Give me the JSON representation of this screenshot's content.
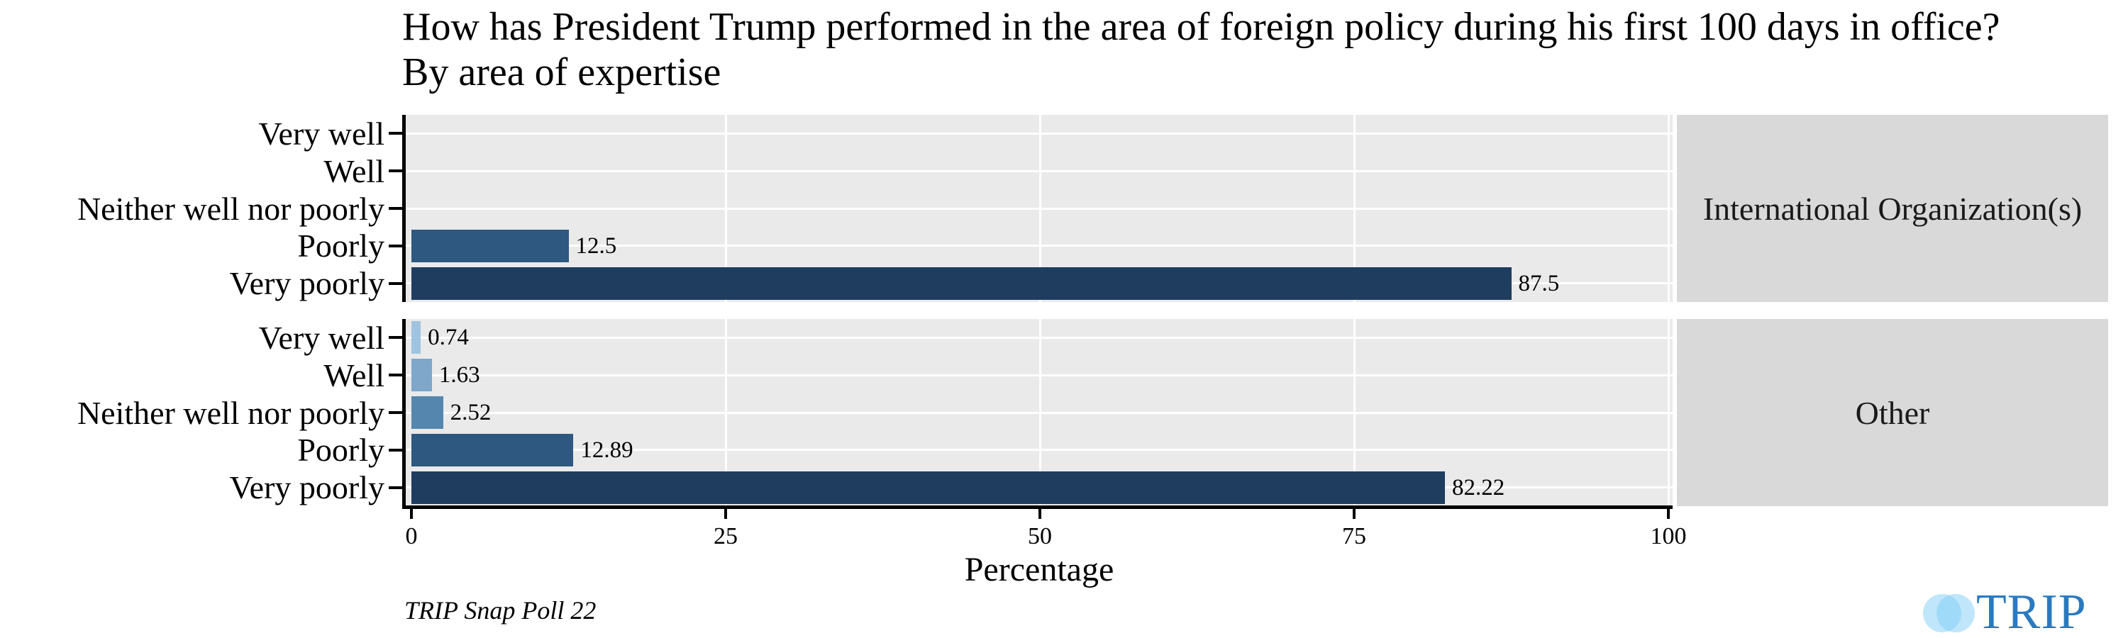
{
  "chart_data": {
    "type": "bar",
    "orientation": "horizontal",
    "title": "How has President Trump performed in the area of foreign policy during his first 100 days in office?",
    "subtitle": "By area of expertise",
    "xlabel": "Percentage",
    "xlim": [
      0,
      100
    ],
    "xticks": [
      0,
      25,
      50,
      75,
      100
    ],
    "categories": [
      "Very well",
      "Well",
      "Neither well nor poorly",
      "Poorly",
      "Very poorly"
    ],
    "facets": [
      {
        "label": "International Organization(s)",
        "values": [
          0,
          0,
          0,
          12.5,
          87.5
        ],
        "value_labels": [
          "",
          "",
          "",
          "12.5",
          "87.5"
        ]
      },
      {
        "label": "Other",
        "values": [
          0.74,
          1.63,
          2.52,
          12.89,
          82.22
        ],
        "value_labels": [
          "0.74",
          "1.63",
          "2.52",
          "12.89",
          "82.22"
        ]
      }
    ],
    "bar_colors": [
      "#9FC4E1",
      "#7EA7C9",
      "#5587AE",
      "#2F5880",
      "#1E3D5F"
    ],
    "grid": "white major gridlines on gray panels",
    "legend": "none"
  },
  "caption": "TRIP Snap Poll 22",
  "logo": {
    "text": "TRIP",
    "text_color": "#2A7ABF",
    "circle_color": "#7FCDF5"
  },
  "colors": {
    "panel_bg": "#EAEAEA",
    "strip_bg": "#D9D9D9",
    "gridline": "#FFFFFF",
    "axis": "#000000"
  }
}
